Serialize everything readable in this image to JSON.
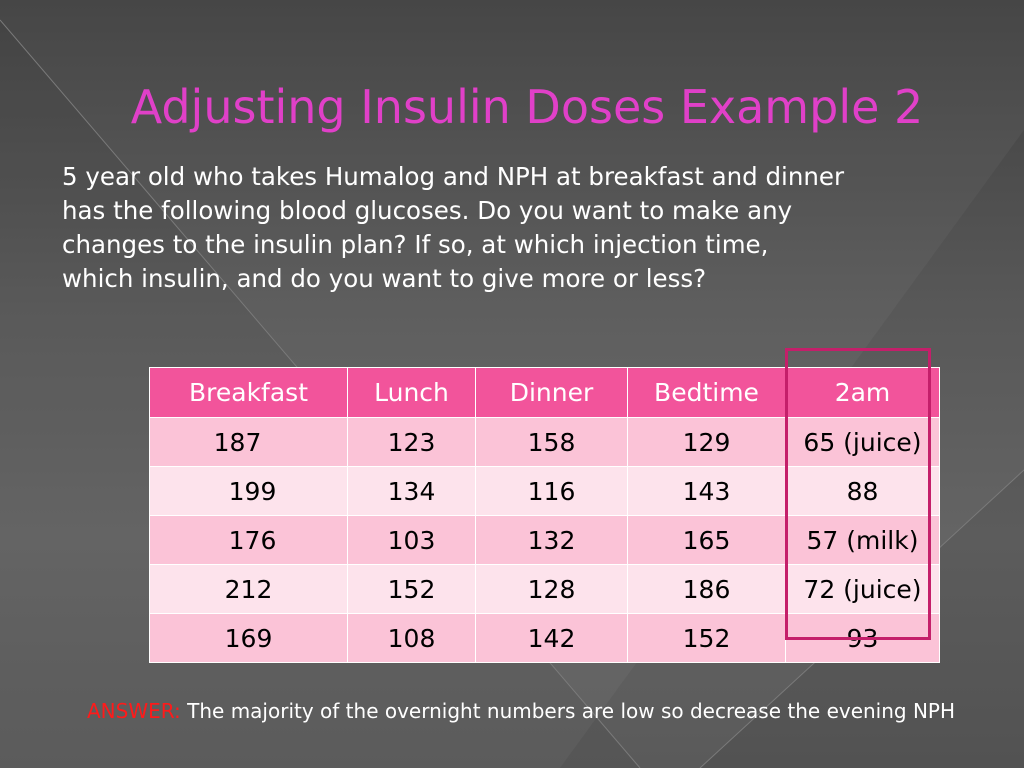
{
  "slide": {
    "title": "Adjusting Insulin Doses Example 2",
    "body_lines": [
      "5 year old who takes Humalog and NPH at breakfast and dinner",
      "has the following blood glucoses.  Do you want to make any",
      "changes to the  insulin plan? If so,  at  which injection time,",
      "which insulin, and do you want to give more or less?"
    ]
  },
  "table": {
    "headers": [
      "Breakfast",
      "Lunch",
      "Dinner",
      "Bedtime",
      "2am"
    ],
    "rows": [
      [
        "187",
        "123",
        "158",
        "129",
        "65 (juice)"
      ],
      [
        "199",
        "134",
        "116",
        "143",
        "88"
      ],
      [
        "176",
        "103",
        "132",
        "165",
        "57 (milk)"
      ],
      [
        "212",
        "152",
        "128",
        "186",
        "72 (juice)"
      ],
      [
        "169",
        "108",
        "142",
        "152",
        "93"
      ]
    ]
  },
  "answer": {
    "label": "ANSWER:",
    "text": "The majority of the overnight numbers are low so decrease the evening NPH"
  },
  "colors": {
    "title": "#e040c8",
    "header_bg": "#f2549b",
    "row_odd": "#fbc3d7",
    "row_even": "#fde3ec",
    "highlight": "#c41f6a",
    "answer_label": "#ff1a1a"
  }
}
